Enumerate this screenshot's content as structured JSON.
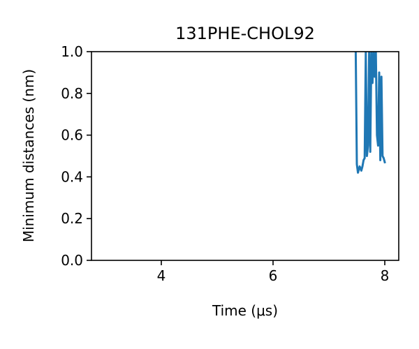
{
  "chart_data": {
    "type": "line",
    "title": "131PHE-CHOL92",
    "xlabel": "Time (μs)",
    "ylabel": "Minimum distances (nm)",
    "xlim": [
      2.75,
      8.25
    ],
    "ylim": [
      0.0,
      1.0
    ],
    "xticks": [
      4,
      6,
      8
    ],
    "xtick_labels": [
      "4",
      "6",
      "8"
    ],
    "yticks": [
      0.0,
      0.2,
      0.4,
      0.6,
      0.8,
      1.0
    ],
    "ytick_labels": [
      "0.0",
      "0.2",
      "0.4",
      "0.6",
      "0.8",
      "1.0"
    ],
    "grid": false,
    "series": [
      {
        "color": "#1f77b4",
        "x": [
          7.48,
          7.5,
          7.52,
          7.55,
          7.58,
          7.6,
          7.62,
          7.64,
          7.66,
          7.68,
          7.7,
          7.72,
          7.74,
          7.76,
          7.78,
          7.8,
          7.82,
          7.84,
          7.86,
          7.88,
          7.9,
          7.92,
          7.94,
          7.96,
          7.98,
          8.0
        ],
        "y": [
          1.0,
          0.46,
          0.42,
          0.45,
          0.43,
          0.45,
          0.48,
          0.49,
          1.0,
          0.5,
          0.55,
          1.0,
          0.52,
          1.0,
          0.85,
          1.0,
          0.88,
          1.0,
          0.6,
          0.55,
          0.9,
          0.48,
          0.88,
          0.5,
          0.49,
          0.47
        ]
      }
    ]
  }
}
